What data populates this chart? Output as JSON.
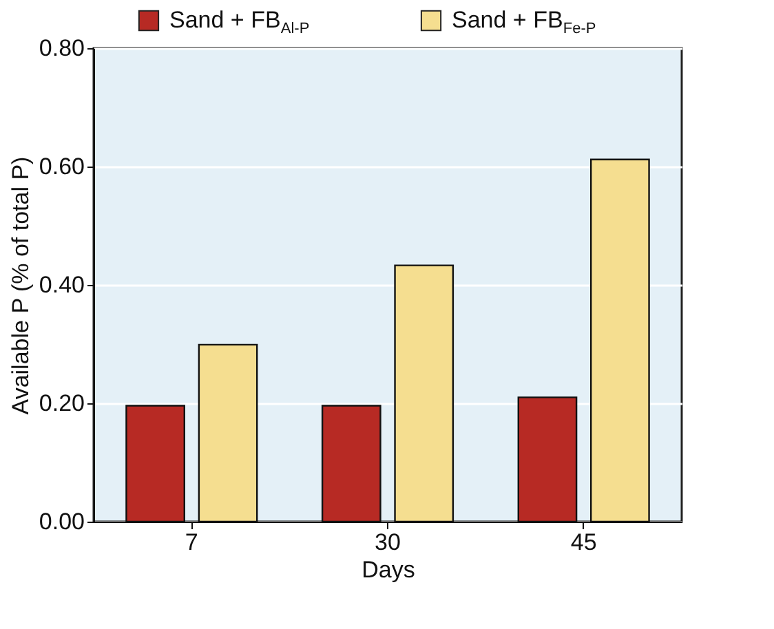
{
  "chart_data": {
    "type": "bar",
    "xlabel": "Days",
    "ylabel": "Available P (% of total P)",
    "categories": [
      "7",
      "30",
      "45"
    ],
    "series": [
      {
        "name": "Sand + FB$_{Al-P}$",
        "color": "#b72a24",
        "values": [
          0.196,
          0.196,
          0.21
        ]
      },
      {
        "name": "Sand + FB$_{Fe-P}$",
        "color": "#f5de90",
        "values": [
          0.299,
          0.433,
          0.612
        ]
      }
    ],
    "ylim": [
      0,
      0.8
    ],
    "yticks": [
      {
        "value": 0,
        "label": "0.00"
      },
      {
        "value": 0.2,
        "label": "0.20"
      },
      {
        "value": 0.4,
        "label": "0.40"
      },
      {
        "value": 0.6,
        "label": "0.60"
      },
      {
        "value": 0.8,
        "label": "0.80"
      }
    ],
    "grid": "y",
    "legend": "top"
  }
}
